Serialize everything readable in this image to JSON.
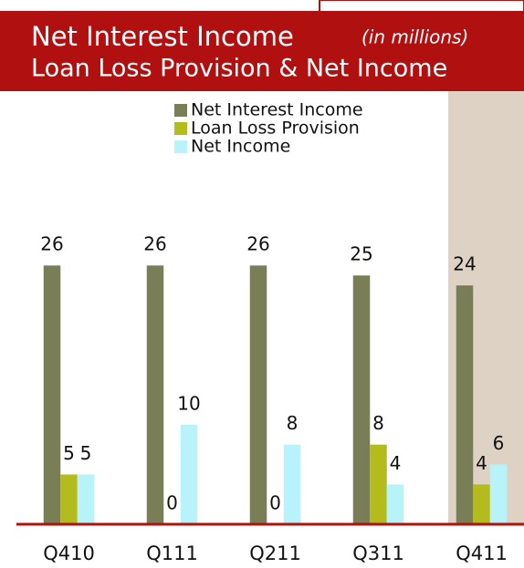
{
  "chart_data": {
    "type": "bar",
    "title": "Net Interest Income",
    "subtitle": "(in millions)",
    "title_line2": "Loan Loss Provision & Net Income",
    "categories": [
      "Q410",
      "Q111",
      "Q211",
      "Q311",
      "Q411"
    ],
    "series": [
      {
        "name": "Net Interest Income",
        "color": "#7a7e57",
        "values": [
          26,
          26,
          26,
          25,
          24
        ]
      },
      {
        "name": "Loan Loss Provision",
        "color": "#b3bb1d",
        "values": [
          5,
          0,
          0,
          8,
          4
        ]
      },
      {
        "name": "Net Income",
        "color": "#b8f3fa",
        "values": [
          5,
          10,
          8,
          4,
          6
        ]
      }
    ],
    "ylim": [
      0,
      35
    ],
    "highlight": {
      "category": 4,
      "color": "#ddd2c3"
    }
  }
}
